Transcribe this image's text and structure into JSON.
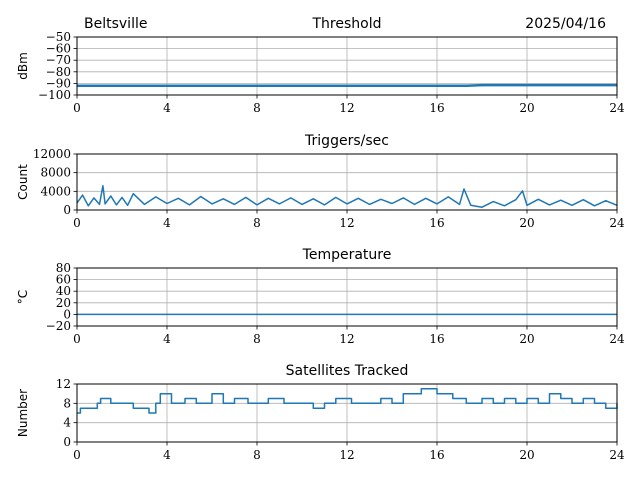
{
  "header": {
    "location": "Beltsville",
    "date": "2025/04/16"
  },
  "chart_data": [
    {
      "type": "line",
      "title": "Threshold",
      "xlabel": "",
      "ylabel": "dBm",
      "xlim": [
        0,
        24
      ],
      "ylim": [
        -100,
        -50
      ],
      "xticks": [
        0,
        4,
        8,
        12,
        16,
        20,
        24
      ],
      "yticks": [
        -100,
        -90,
        -80,
        -70,
        -60,
        -50
      ],
      "ytick_labels": [
        "−100",
        "−90",
        "−80",
        "−70",
        "−60",
        "−50"
      ],
      "grid": true,
      "color": "#1f77b4",
      "series": [
        {
          "x": [
            0,
            2,
            4,
            6,
            8,
            10,
            12,
            14,
            16,
            17.3,
            18,
            20,
            22,
            24
          ],
          "values": [
            -92,
            -92,
            -92,
            -92,
            -92,
            -92,
            -92,
            -92,
            -92,
            -92,
            -91.5,
            -91.5,
            -91.5,
            -91.5
          ]
        }
      ]
    },
    {
      "type": "line",
      "title": "Triggers/sec",
      "xlabel": "",
      "ylabel": "Count",
      "xlim": [
        0,
        24
      ],
      "ylim": [
        0,
        12000
      ],
      "xticks": [
        0,
        4,
        8,
        12,
        16,
        20,
        24
      ],
      "yticks": [
        0,
        4000,
        8000,
        12000
      ],
      "ytick_labels": [
        "0",
        "4000",
        "8000",
        "12000"
      ],
      "grid": true,
      "color": "#1f77b4",
      "series": [
        {
          "x": [
            0,
            0.25,
            0.5,
            0.75,
            1.0,
            1.15,
            1.25,
            1.5,
            1.75,
            2.0,
            2.25,
            2.5,
            3.0,
            3.5,
            4.0,
            4.5,
            5.0,
            5.5,
            6.0,
            6.5,
            7.0,
            7.5,
            8.0,
            8.5,
            9.0,
            9.5,
            10.0,
            10.5,
            11.0,
            11.5,
            12.0,
            12.5,
            13.0,
            13.5,
            14.0,
            14.5,
            15.0,
            15.5,
            16.0,
            16.5,
            17.0,
            17.2,
            17.5,
            18.0,
            18.5,
            19.0,
            19.5,
            19.8,
            20.0,
            20.5,
            21.0,
            21.5,
            22.0,
            22.5,
            23.0,
            23.5,
            24.0
          ],
          "values": [
            1500,
            3200,
            900,
            2600,
            1200,
            5200,
            1300,
            3000,
            1100,
            2700,
            1000,
            3500,
            1200,
            2800,
            1400,
            2500,
            1100,
            2900,
            1300,
            2400,
            1200,
            2700,
            1100,
            2500,
            1300,
            2600,
            1200,
            2400,
            1100,
            2700,
            1300,
            2500,
            1200,
            2300,
            1400,
            2600,
            1200,
            2500,
            1300,
            2800,
            1200,
            4500,
            1000,
            600,
            1800,
            900,
            2200,
            4100,
            1000,
            2300,
            1100,
            2100,
            1000,
            2200,
            900,
            2000,
            1000
          ]
        }
      ]
    },
    {
      "type": "line",
      "title": "Temperature",
      "xlabel": "",
      "ylabel": "°C",
      "xlim": [
        0,
        24
      ],
      "ylim": [
        -20,
        80
      ],
      "xticks": [
        0,
        4,
        8,
        12,
        16,
        20,
        24
      ],
      "yticks": [
        -20,
        0,
        20,
        40,
        60,
        80
      ],
      "ytick_labels": [
        "−20",
        "0",
        "20",
        "40",
        "60",
        "80"
      ],
      "grid": true,
      "color": "#1f77b4",
      "series": [
        {
          "x": [
            0,
            4,
            8,
            12,
            16,
            20,
            24
          ],
          "values": [
            0,
            0,
            0,
            0,
            0,
            0,
            0
          ]
        }
      ]
    },
    {
      "type": "line",
      "title": "Satellites Tracked",
      "xlabel": "",
      "ylabel": "Number",
      "xlim": [
        0,
        24
      ],
      "ylim": [
        0,
        12
      ],
      "xticks": [
        0,
        4,
        8,
        12,
        16,
        20,
        24
      ],
      "yticks": [
        0,
        4,
        8,
        12
      ],
      "ytick_labels": [
        "0",
        "4",
        "8",
        "12"
      ],
      "grid": true,
      "color": "#1f77b4",
      "series": [
        {
          "x": [
            0,
            0.15,
            0.3,
            0.9,
            1.05,
            1.5,
            2.0,
            2.5,
            3.2,
            3.5,
            3.7,
            4.2,
            4.8,
            5.3,
            6.0,
            6.5,
            7.0,
            7.6,
            8.0,
            8.5,
            9.2,
            9.8,
            10.5,
            11.0,
            11.5,
            12.2,
            13.0,
            13.5,
            14.0,
            14.5,
            15.0,
            15.3,
            16.0,
            16.7,
            17.3,
            18.0,
            18.5,
            19.0,
            19.5,
            20.0,
            20.5,
            21.0,
            21.5,
            22.0,
            22.5,
            23.0,
            23.5,
            24.0
          ],
          "values": [
            6,
            7,
            7,
            8,
            9,
            8,
            8,
            7,
            6,
            8,
            10,
            8,
            9,
            8,
            10,
            8,
            9,
            8,
            8,
            9,
            8,
            8,
            7,
            8,
            9,
            8,
            8,
            9,
            8,
            10,
            10,
            11,
            10,
            9,
            8,
            9,
            8,
            9,
            8,
            9,
            8,
            10,
            9,
            8,
            9,
            8,
            7,
            8
          ]
        }
      ]
    }
  ]
}
